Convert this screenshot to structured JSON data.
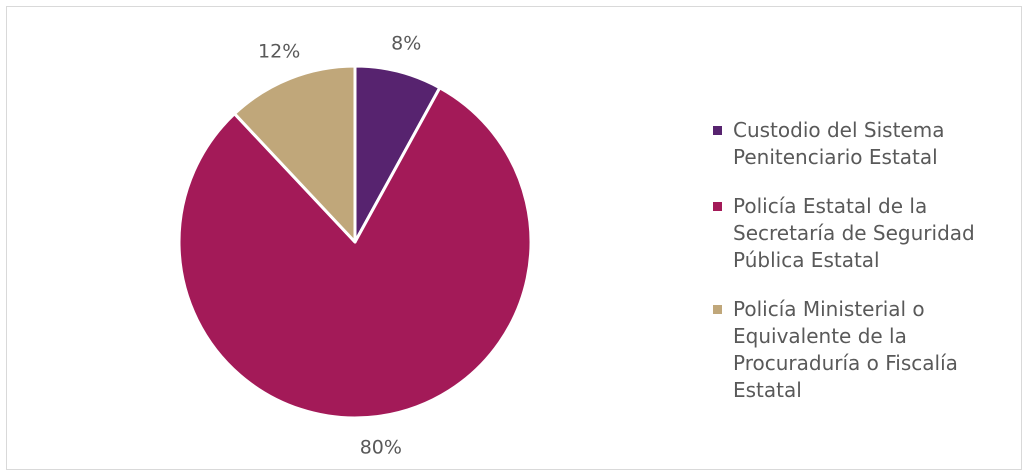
{
  "colors": {
    "custodio": "#57236f",
    "policia_estatal": "#a31a58",
    "policia_ministerial": "#c0a77a",
    "text": "#595959"
  },
  "chart_data": {
    "type": "pie",
    "title": "",
    "series": [
      {
        "values": [
          8,
          80,
          12
        ]
      }
    ],
    "categories": [
      "Custodio del Sistema Penitenciario Estatal",
      "Policía Estatal de la Secretaría de Seguridad Pública Estatal",
      "Policía Ministerial o Equivalente de la Procuraduría o Fiscalía Estatal"
    ],
    "values": [
      8,
      80,
      12
    ],
    "labels": [
      "8%",
      "80%",
      "12%"
    ],
    "legend_position": "right",
    "legend": [
      {
        "lines": [
          "Custodio del Sistema",
          "Penitenciario Estatal"
        ],
        "color": "#57236f"
      },
      {
        "lines": [
          "Policía Estatal de la",
          "Secretaría de Seguridad",
          "Pública Estatal"
        ],
        "color": "#a31a58"
      },
      {
        "lines": [
          "Policía Ministerial o",
          "Equivalente de la",
          "Procuraduría o Fiscalía",
          "Estatal"
        ],
        "color": "#c0a77a"
      }
    ]
  }
}
